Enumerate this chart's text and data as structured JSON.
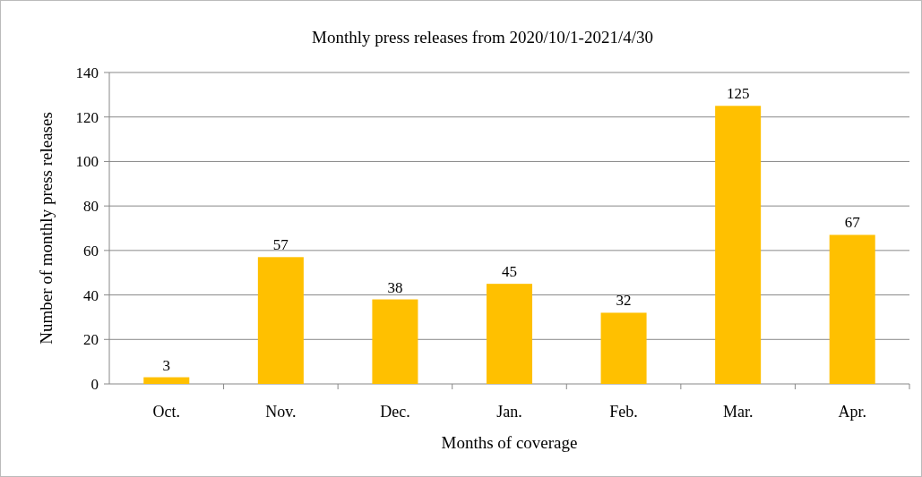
{
  "chart_data": {
    "type": "bar",
    "title": "Monthly  press releases from 2020/10/1-2021/4/30",
    "xlabel": "Months of coverage",
    "ylabel": "Number of monthly  press releases",
    "categories": [
      "Oct.",
      "Nov.",
      "Dec.",
      "Jan.",
      "Feb.",
      "Mar.",
      "Apr."
    ],
    "values": [
      3,
      57,
      38,
      45,
      32,
      125,
      67
    ],
    "color": "#ffc000",
    "ylim": [
      0,
      140
    ],
    "yticks": [
      0,
      20,
      40,
      60,
      80,
      100,
      120,
      140
    ],
    "grid": "y",
    "data_labels": true
  }
}
